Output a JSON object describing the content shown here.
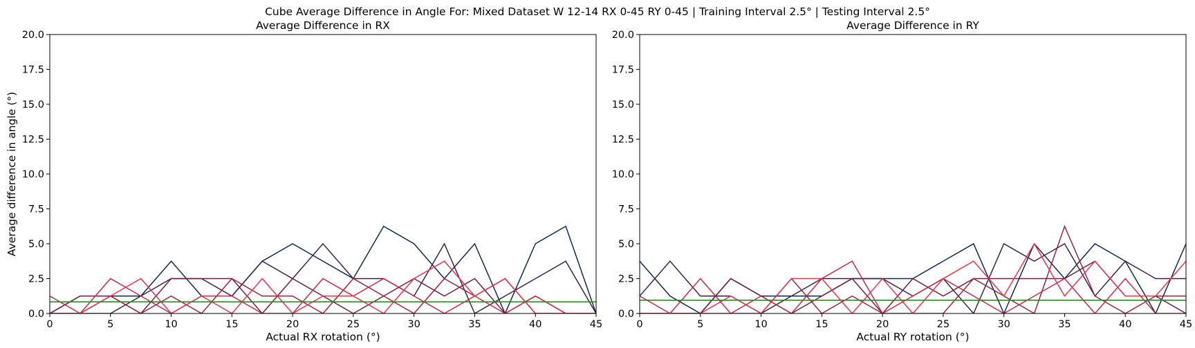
{
  "figure": {
    "suptitle": "Cube Average Difference in Angle For: Mixed Dataset W 12-14 RX 0-45 RY 0-45 | Training Interval 2.5° | Testing Interval 2.5°"
  },
  "colors": {
    "series_palette": [
      "#0d2a4a",
      "#3a2148",
      "#6e1f44",
      "#9b2342",
      "#c62a46",
      "#e8334f"
    ],
    "mean_line": "#2e8b22",
    "axes": "#000000"
  },
  "chart_data": [
    {
      "type": "line",
      "title": "Average Difference in RX",
      "xlabel": "Actual RX rotation (°)",
      "ylabel": "Average difference in angle (°)",
      "xlim": [
        0,
        45
      ],
      "ylim": [
        0,
        20
      ],
      "xticks": [
        0,
        5,
        10,
        15,
        20,
        25,
        30,
        35,
        40,
        45
      ],
      "yticks": [
        0.0,
        2.5,
        5.0,
        7.5,
        10.0,
        12.5,
        15.0,
        17.5,
        20.0
      ],
      "ytick_labels": [
        "0.0",
        "2.5",
        "5.0",
        "7.5",
        "10.0",
        "12.5",
        "15.0",
        "17.5",
        "20.0"
      ],
      "xtick_labels": [
        "0",
        "5",
        "10",
        "15",
        "20",
        "25",
        "30",
        "35",
        "40",
        "45"
      ],
      "x": [
        0,
        2.5,
        5,
        7.5,
        10,
        12.5,
        15,
        17.5,
        20,
        22.5,
        25,
        27.5,
        30,
        32.5,
        35,
        37.5,
        40,
        42.5,
        45
      ],
      "mean_line": 0.83,
      "grid": false,
      "series": [
        {
          "values": [
            0,
            1.25,
            1.25,
            1.25,
            3.75,
            1.25,
            1.25,
            3.75,
            5.0,
            3.75,
            2.5,
            6.25,
            5.0,
            2.5,
            5.0,
            0,
            5.0,
            6.25,
            0
          ]
        },
        {
          "values": [
            0,
            0,
            0,
            1.25,
            2.5,
            2.5,
            1.25,
            3.75,
            2.5,
            5.0,
            2.5,
            2.5,
            1.25,
            5.0,
            0,
            1.25,
            2.5,
            3.75,
            0
          ]
        },
        {
          "values": [
            0,
            1.25,
            1.25,
            0,
            2.5,
            2.5,
            2.5,
            0,
            2.5,
            1.25,
            0,
            1.25,
            2.5,
            1.25,
            2.5,
            0,
            1.25,
            0,
            0
          ]
        },
        {
          "values": [
            0,
            0,
            1.25,
            0,
            1.25,
            0,
            2.5,
            1.25,
            1.25,
            0,
            2.5,
            1.25,
            0,
            2.5,
            1.25,
            2.5,
            0,
            0,
            0
          ]
        },
        {
          "values": [
            1.25,
            0,
            2.5,
            1.25,
            0,
            1.25,
            1.25,
            0,
            0,
            2.5,
            1.25,
            2.5,
            1.25,
            0,
            1.25,
            0,
            1.25,
            0,
            0
          ]
        },
        {
          "values": [
            0,
            0,
            1.25,
            2.5,
            0,
            1.25,
            0,
            2.5,
            0,
            1.25,
            1.25,
            0,
            2.5,
            3.75,
            1.25,
            2.5,
            0,
            0,
            0
          ]
        }
      ]
    },
    {
      "type": "line",
      "title": "Average Difference in RY",
      "xlabel": "Actual RY rotation (°)",
      "ylabel": "",
      "xlim": [
        0,
        45
      ],
      "ylim": [
        0,
        20
      ],
      "xticks": [
        0,
        5,
        10,
        15,
        20,
        25,
        30,
        35,
        40,
        45
      ],
      "yticks": [
        0.0,
        2.5,
        5.0,
        7.5,
        10.0,
        12.5,
        15.0,
        17.5,
        20.0
      ],
      "ytick_labels": [
        "0.0",
        "2.5",
        "5.0",
        "7.5",
        "10.0",
        "12.5",
        "15.0",
        "17.5",
        "20.0"
      ],
      "xtick_labels": [
        "0",
        "5",
        "10",
        "15",
        "20",
        "25",
        "30",
        "35",
        "40",
        "45"
      ],
      "x": [
        0,
        2.5,
        5,
        7.5,
        10,
        12.5,
        15,
        17.5,
        20,
        22.5,
        25,
        27.5,
        30,
        32.5,
        35,
        37.5,
        40,
        42.5,
        45
      ],
      "mean_line": 0.95,
      "grid": false,
      "series": [
        {
          "values": [
            3.75,
            1.25,
            0,
            2.5,
            1.25,
            1.25,
            1.25,
            2.5,
            2.5,
            2.5,
            3.75,
            5.0,
            0,
            5.0,
            2.5,
            5.0,
            3.75,
            0,
            5.0
          ]
        },
        {
          "values": [
            1.25,
            3.75,
            1.25,
            1.25,
            0,
            1.25,
            2.5,
            2.5,
            2.5,
            1.25,
            2.5,
            0,
            5.0,
            3.75,
            5.0,
            1.25,
            3.75,
            2.5,
            2.5
          ]
        },
        {
          "values": [
            0,
            0,
            0,
            2.5,
            1.25,
            0,
            1.25,
            2.5,
            0,
            2.5,
            1.25,
            2.5,
            2.5,
            2.5,
            2.5,
            3.75,
            1.25,
            1.25,
            0
          ]
        },
        {
          "values": [
            0,
            0,
            0,
            0,
            0,
            2.5,
            0,
            1.25,
            0,
            0,
            0,
            2.5,
            1.25,
            0,
            6.25,
            1.25,
            0,
            1.25,
            1.25
          ]
        },
        {
          "values": [
            1.25,
            0,
            2.5,
            0,
            1.25,
            0,
            2.5,
            3.75,
            0,
            1.25,
            2.5,
            1.25,
            0,
            1.25,
            2.5,
            0,
            2.5,
            0,
            0
          ]
        },
        {
          "values": [
            0,
            0,
            0,
            1.25,
            0,
            2.5,
            2.5,
            0,
            2.5,
            0,
            2.5,
            3.75,
            1.25,
            5.0,
            1.25,
            3.75,
            1.25,
            1.25,
            3.75
          ]
        }
      ]
    }
  ]
}
